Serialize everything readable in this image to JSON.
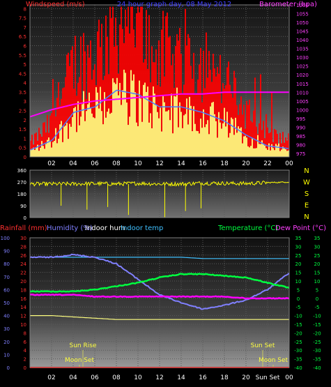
{
  "top_panel": {
    "title_left": "Windspeed (m/s)",
    "title_center": "24 hour graph day, 08 May 2012",
    "title_right": "Barometer (hpa)",
    "left_ticks": [
      "0",
      "0.5",
      "1",
      "1.5",
      "2",
      "2.5",
      "3",
      "3.5",
      "4",
      "4.5",
      "5",
      "5.5",
      "6",
      "6.5",
      "7",
      "7.5",
      "8"
    ],
    "right_ticks": [
      "975",
      "980",
      "985",
      "990",
      "995",
      "1000",
      "1005",
      "1010",
      "1015",
      "1020",
      "1025",
      "1030",
      "1035",
      "1040",
      "1045",
      "1050",
      "1055",
      "1060"
    ],
    "x_ticks": [
      "02",
      "04",
      "06",
      "08",
      "10",
      "12",
      "14",
      "16",
      "18",
      "20",
      "22",
      "00"
    ]
  },
  "middle_panel": {
    "left_ticks": [
      "0",
      "90",
      "180",
      "270",
      "360"
    ],
    "direction_labels": [
      "N",
      "W",
      "S",
      "E",
      "N"
    ]
  },
  "bottom_panel": {
    "legend": {
      "rainfall": "Rainfall (mm)",
      "humidity": "Humidity (%)",
      "indoor_hum": "Indoor hum",
      "indoor_temp": "Indoor temp",
      "temperature": "Temperature (°C)",
      "dew_point": "Dew Point (°C)"
    },
    "humidity_ticks": [
      "0",
      "10",
      "20",
      "30",
      "40",
      "50",
      "60",
      "70",
      "80",
      "90",
      "100"
    ],
    "rain_ticks": [
      "0",
      "2",
      "4",
      "6",
      "8",
      "10",
      "12",
      "14",
      "16",
      "18",
      "20",
      "22",
      "24",
      "26",
      "28",
      "30"
    ],
    "temp_ticks": [
      "-40",
      "-35",
      "-30",
      "-25",
      "-20",
      "-15",
      "-10",
      "-5",
      "0",
      "5",
      "10",
      "15",
      "20",
      "25",
      "30",
      "35"
    ],
    "x_ticks": [
      "02",
      "04",
      "06",
      "08",
      "10",
      "12",
      "14",
      "16",
      "18",
      "20",
      "Sun Set",
      "00"
    ],
    "events": {
      "sun_rise": "Sun Rise",
      "sun_set": "Sun Set",
      "moon_set": "Moon Set"
    }
  },
  "colors": {
    "wind_speed": "#ff0000",
    "wind_gust": "#ffff80",
    "wind_avg": "#4a7dff",
    "barometer": "#ff00ff",
    "wind_dir": "#ffff00",
    "humidity": "#8080ff",
    "indoor_hum": "#ffff80",
    "indoor_temp": "#40c0ff",
    "temperature": "#00ff40",
    "dew_point": "#ff00ff",
    "rainfall": "#ff0000"
  },
  "chart_data": [
    {
      "type": "line",
      "title": "24 hour graph day, 08 May 2012",
      "ylabel": "Windspeed (m/s)",
      "ylabel_right": "Barometer (hpa)",
      "ylim": [
        0,
        8.2
      ],
      "ylim_right": [
        973,
        1060
      ],
      "x": [
        "00",
        "02",
        "04",
        "06",
        "08",
        "10",
        "12",
        "14",
        "16",
        "18",
        "20",
        "22",
        "00"
      ],
      "series": [
        {
          "name": "Windspeed (m/s)",
          "values": [
            0.5,
            1.2,
            3.2,
            3.6,
            4.8,
            4.5,
            3.6,
            3.6,
            3.2,
            2.6,
            1.6,
            0.8,
            0.6
          ]
        },
        {
          "name": "Barometer (hpa)",
          "values": [
            996,
            1000,
            1003,
            1005,
            1006,
            1007,
            1008,
            1009,
            1009,
            1010,
            1010,
            1010,
            1010
          ]
        }
      ]
    },
    {
      "type": "line",
      "ylabel": "Wind direction",
      "ylim": [
        0,
        360
      ],
      "x": [
        "00",
        "02",
        "04",
        "06",
        "08",
        "10",
        "12",
        "14",
        "16",
        "18",
        "20",
        "22",
        "00"
      ],
      "series": [
        {
          "values": [
            255,
            255,
            255,
            258,
            255,
            260,
            255,
            255,
            262,
            260,
            258,
            265,
            270
          ]
        }
      ]
    },
    {
      "type": "line",
      "x": [
        "00",
        "02",
        "04",
        "06",
        "08",
        "10",
        "12",
        "14",
        "16",
        "18",
        "20",
        "22",
        "00"
      ],
      "series": [
        {
          "name": "Humidity (%)",
          "values": [
            85,
            85,
            87,
            85,
            80,
            68,
            56,
            50,
            45,
            48,
            52,
            60,
            73
          ]
        },
        {
          "name": "Indoor hum",
          "values": [
            40,
            40,
            39,
            38,
            37,
            37,
            37,
            37,
            37,
            37,
            37,
            37,
            37
          ]
        },
        {
          "name": "Indoor temp",
          "values": [
            85,
            85,
            85,
            85,
            85,
            85,
            85,
            85,
            84,
            84,
            84,
            84,
            84
          ]
        },
        {
          "name": "Temperature (°C)",
          "values": [
            4,
            4,
            4,
            5,
            7,
            9,
            12,
            14,
            14,
            13,
            12,
            9,
            6
          ]
        },
        {
          "name": "Dew Point (°C)",
          "values": [
            2,
            2,
            2,
            1,
            1,
            1,
            1,
            1,
            1,
            1,
            0,
            0,
            0
          ]
        },
        {
          "name": "Rainfall (mm)",
          "values": [
            0,
            0,
            0,
            0,
            0,
            0,
            0,
            0,
            0,
            0,
            0,
            0,
            0
          ]
        }
      ]
    }
  ]
}
